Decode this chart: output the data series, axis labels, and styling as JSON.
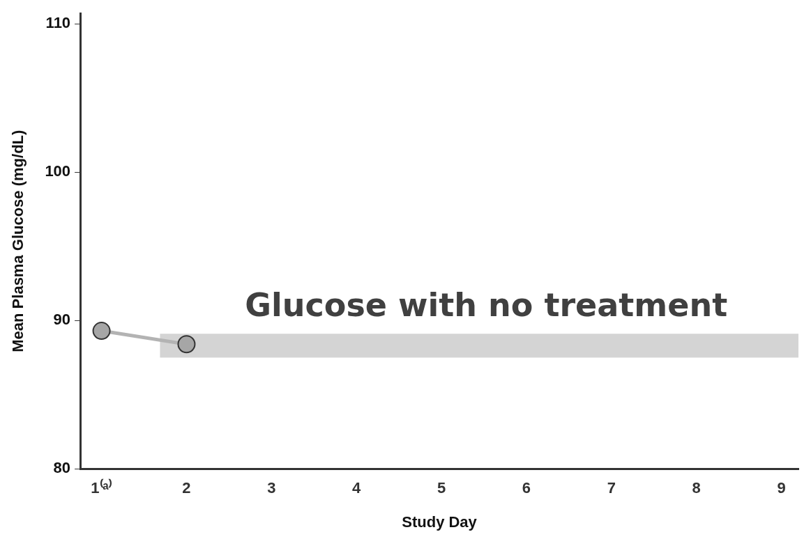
{
  "chart_data": {
    "type": "line",
    "xlabel": "Study Day",
    "ylabel": "Mean Plasma Glucose (mg/dL)",
    "x": [
      1,
      2
    ],
    "series": [
      {
        "color": "#a6a6a6",
        "values": [
          89.3,
          88.4
        ]
      }
    ],
    "marker": "circle",
    "xlim": [
      0.75,
      9.2
    ],
    "xticks": [
      {
        "value": 1,
        "label": "1⁽ᵃ⁾"
      },
      2,
      3,
      4,
      5,
      6,
      7,
      8,
      9
    ],
    "ylim": [
      80,
      110.7
    ],
    "yticks": [
      80,
      90,
      100,
      110
    ],
    "bands": [
      {
        "axis": "y",
        "from": 87.5,
        "to": 89.1,
        "label": "Glucose with no treatment",
        "color": "#d4d4d4"
      }
    ],
    "grid": false,
    "legend": false
  }
}
